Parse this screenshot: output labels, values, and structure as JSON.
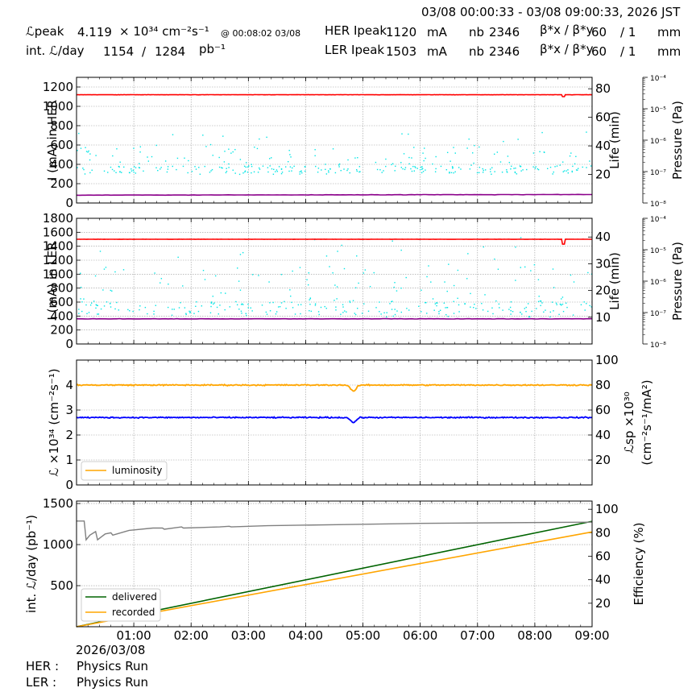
{
  "header": {
    "time_range": "03/08 00:00:33 - 03/08 09:00:33, 2026 JST",
    "lpeak_label": "ℒpeak",
    "lpeak_value": "4.119",
    "lpeak_unit": "× 10³⁴ cm⁻²s⁻¹",
    "lpeak_time": "@ 00:08:02 03/08",
    "intl_label": "int. ℒ/day",
    "intl_recorded": "1154",
    "intl_sep": "/",
    "intl_delivered": "1284",
    "intl_unit": "pb⁻¹",
    "her_label": "HER Ipeak",
    "her_value": "1120",
    "her_unit": "mA",
    "ler_label": "LER Ipeak",
    "ler_value": "1503",
    "ler_unit": "mA",
    "nb_label": "nb",
    "her_nb": "2346",
    "ler_nb": "2346",
    "beta_label": "β*x / β*y",
    "her_beta_x": "60",
    "her_beta_y": "/ 1",
    "ler_beta_x": "60",
    "ler_beta_y": "/ 1",
    "beta_unit": "mm"
  },
  "footer": {
    "date": "2026/03/08",
    "her_label": "HER :",
    "her_mode": "Physics Run",
    "ler_label": "LER :",
    "ler_mode": "Physics Run"
  },
  "colors": {
    "current": "#ff0000",
    "life": "#00e5e5",
    "pressure": "#8b008b",
    "luminosity": "#ffa500",
    "specific": "#0000ff",
    "delivered": "#006400",
    "recorded": "#ffa500",
    "efficiency": "#808080"
  },
  "chart_data": [
    {
      "type": "line",
      "panel": "HER",
      "xlim": [
        "00:00",
        "09:00"
      ],
      "ylabel": "I (mA) in HER",
      "ylim": [
        0,
        1300
      ],
      "yticks": [
        0,
        200,
        400,
        600,
        800,
        1000,
        1200
      ],
      "y2label": "Life (min)",
      "y2lim": [
        0,
        88
      ],
      "y2ticks": [
        20,
        40,
        60,
        80
      ],
      "y3label": "Pressure (Pa)",
      "y3ticks": [
        "10⁻⁸",
        "10⁻⁷",
        "10⁻⁶",
        "10⁻⁵",
        "10⁻⁴"
      ],
      "series": [
        {
          "key": "current",
          "value": 1120,
          "dip": {
            "x": "08:30",
            "value": 1100
          }
        },
        {
          "key": "life",
          "typical_min": 20,
          "typical_max": 40,
          "scatter": true
        },
        {
          "key": "pressure",
          "exponent_start": -7.75,
          "exponent_end": -7.73
        }
      ]
    },
    {
      "type": "line",
      "panel": "LER",
      "xlim": [
        "00:00",
        "09:00"
      ],
      "ylabel": "I (mA) in LER",
      "ylim": [
        0,
        1800
      ],
      "yticks": [
        0,
        200,
        400,
        600,
        800,
        1000,
        1200,
        1400,
        1600,
        1800
      ],
      "y2label": "Life (min)",
      "y2lim": [
        0,
        47
      ],
      "y2ticks": [
        10,
        20,
        30,
        40
      ],
      "y3label": "Pressure (Pa)",
      "y3ticks": [
        "10⁻⁸",
        "10⁻⁷",
        "10⁻⁶",
        "10⁻⁵",
        "10⁻⁴"
      ],
      "series": [
        {
          "key": "current",
          "value": 1500,
          "dip": {
            "x": "08:30",
            "value": 1430
          }
        },
        {
          "key": "life",
          "typical_min": 10,
          "typical_max": 30,
          "scatter": true
        },
        {
          "key": "pressure",
          "exponent_start": -7.2,
          "exponent_end": -7.2
        }
      ]
    },
    {
      "type": "line",
      "panel": "Luminosity",
      "xlim": [
        "00:00",
        "09:00"
      ],
      "ylabel": "ℒ ×10³⁴ (cm⁻²s⁻¹)",
      "ylim": [
        0,
        5
      ],
      "yticks": [
        0,
        1,
        2,
        3,
        4
      ],
      "y2label_1": "ℒsp ×10³⁰",
      "y2label_2": "(cm⁻²s⁻¹/mA²)",
      "y2lim": [
        0,
        100
      ],
      "y2ticks": [
        20,
        40,
        60,
        80,
        100
      ],
      "legend": [
        "luminosity"
      ],
      "legend_loc": "lower-left",
      "series": [
        {
          "key": "luminosity",
          "name": "luminosity",
          "value": 4.0,
          "dip": {
            "x": "04:50",
            "value": 3.75
          }
        },
        {
          "key": "specific",
          "value": 54,
          "dip": {
            "x": "04:50",
            "value": 50
          }
        }
      ]
    },
    {
      "type": "line",
      "panel": "Integrated",
      "xlim": [
        "00:00",
        "09:00"
      ],
      "ylabel": "int. ℒ/day (pb⁻¹)",
      "ylim": [
        0,
        1530
      ],
      "yticks": [
        500,
        1000,
        1500
      ],
      "y2label": "Efficiency (%)",
      "y2lim": [
        0,
        107
      ],
      "y2ticks": [
        20,
        40,
        60,
        80,
        100
      ],
      "xticks": [
        "01:00",
        "02:00",
        "03:00",
        "04:00",
        "05:00",
        "06:00",
        "07:00",
        "08:00",
        "09:00"
      ],
      "legend": [
        "delivered",
        "recorded"
      ],
      "legend_loc": "lower-left",
      "series": [
        {
          "key": "delivered",
          "name": "delivered",
          "start": 0,
          "end": 1284
        },
        {
          "key": "recorded",
          "name": "recorded",
          "start": 0,
          "end": 1154
        },
        {
          "key": "efficiency",
          "start": 90,
          "min": 74,
          "end": 89
        }
      ]
    }
  ]
}
